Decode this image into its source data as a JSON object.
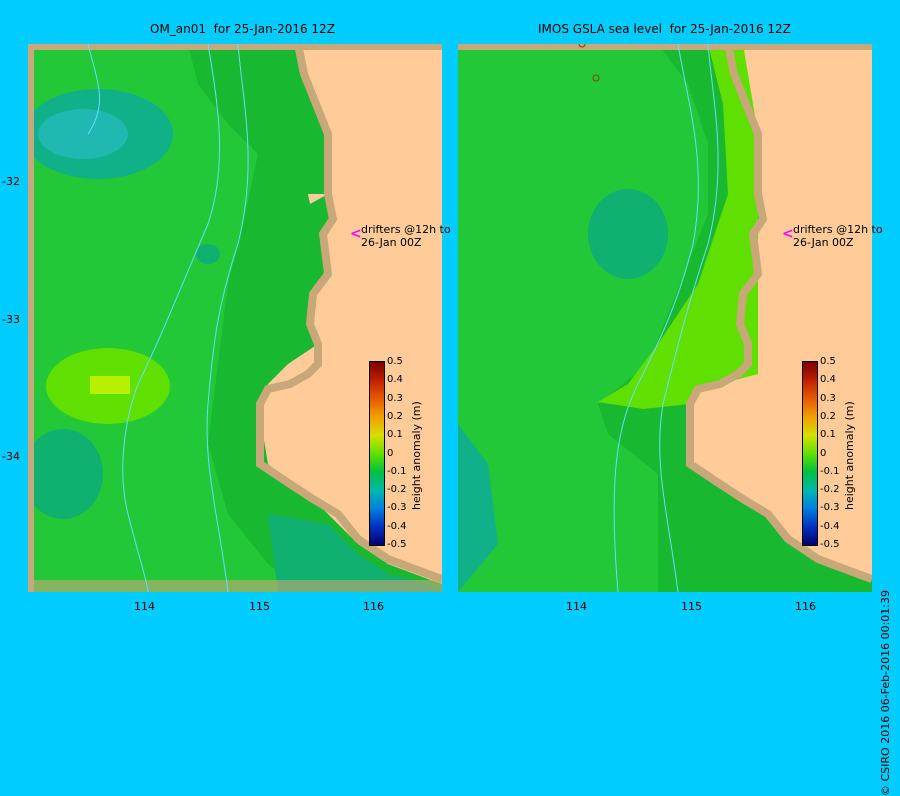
{
  "panels": [
    {
      "title": "OM_an01  for 25-Jan-2016 12Z"
    },
    {
      "title": "IMOS GSLA sea level  for 25-Jan-2016 12Z"
    }
  ],
  "lat_ticks": [
    "-32",
    "-33",
    "-34"
  ],
  "lon_ticks": [
    "114",
    "115",
    "116"
  ],
  "drifter_note": "drifters @12h to\n26-Jan 00Z",
  "colorbar": {
    "label": "height anomaly (m)",
    "ticks": [
      "0.5",
      "0.4",
      "0.3",
      "0.2",
      "0.1",
      "0",
      "-0.1",
      "-0.2",
      "-0.3",
      "-0.4",
      "-0.5"
    ],
    "colors": [
      "#7a0000",
      "#c02000",
      "#e85a00",
      "#f0a000",
      "#d8e000",
      "#60e000",
      "#00c040",
      "#00b8b0",
      "#0080e0",
      "#0030c0",
      "#000070"
    ]
  },
  "credit": "© CSIRO 2016   06-Feb-2016 00:01:39",
  "colors": {
    "land": "#ffcc99",
    "shelf": "#c8a878",
    "background": "#00ccff"
  }
}
